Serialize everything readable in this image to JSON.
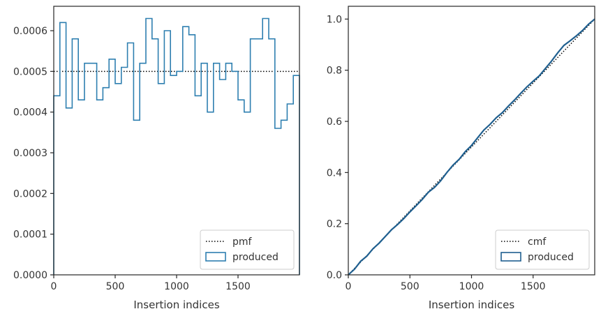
{
  "chart_data": [
    {
      "type": "histogram-step",
      "xlabel": "Insertion indices",
      "ylabel": "",
      "xlim": [
        0,
        2000
      ],
      "ylim": [
        0,
        0.00066
      ],
      "xticks": [
        0,
        500,
        1000,
        1500
      ],
      "xtick_labels": [
        "0",
        "500",
        "1000",
        "1500"
      ],
      "yticks": [
        0,
        0.0001,
        0.0002,
        0.0003,
        0.0004,
        0.0005,
        0.0006
      ],
      "ytick_labels": [
        "0.0000",
        "0.0001",
        "0.0002",
        "0.0003",
        "0.0004",
        "0.0005",
        "0.0006"
      ],
      "grid": false,
      "legend_position": "lower-right",
      "bin_width": 50,
      "series": [
        {
          "name": "pmf",
          "kind": "reference-line",
          "style": "dotted",
          "color": "#000000",
          "value": 0.0005
        },
        {
          "name": "produced",
          "kind": "step",
          "color": "#2e7fb0",
          "x_start": 0,
          "values": [
            0.00044,
            0.00062,
            0.00041,
            0.00058,
            0.00043,
            0.00052,
            0.00052,
            0.00043,
            0.00046,
            0.00053,
            0.00047,
            0.00051,
            0.00057,
            0.00038,
            0.00052,
            0.00063,
            0.00058,
            0.00047,
            0.0006,
            0.00049,
            0.0005,
            0.00061,
            0.00059,
            0.00044,
            0.00052,
            0.0004,
            0.00052,
            0.00048,
            0.00052,
            0.0005,
            0.00043,
            0.0004,
            0.00058,
            0.00058,
            0.00063,
            0.00058,
            0.00036,
            0.00038,
            0.00042,
            0.00049
          ]
        }
      ],
      "legend": [
        "pmf",
        "produced"
      ]
    },
    {
      "type": "line",
      "xlabel": "Insertion indices",
      "ylabel": "",
      "xlim": [
        0,
        2000
      ],
      "ylim": [
        0,
        1.05
      ],
      "xticks": [
        0,
        500,
        1000,
        1500
      ],
      "xtick_labels": [
        "0",
        "500",
        "1000",
        "1500"
      ],
      "yticks": [
        0,
        0.2,
        0.4,
        0.6,
        0.8,
        1.0
      ],
      "ytick_labels": [
        "0.0",
        "0.2",
        "0.4",
        "0.6",
        "0.8",
        "1.0"
      ],
      "grid": false,
      "legend_position": "lower-right",
      "series": [
        {
          "name": "cmf",
          "kind": "dotted-line",
          "color": "#000000",
          "x": [
            0,
            2000
          ],
          "y": [
            0,
            1.0
          ]
        },
        {
          "name": "produced",
          "kind": "line",
          "color": "#1f5f8f",
          "x": [
            0,
            50,
            100,
            150,
            200,
            250,
            300,
            350,
            400,
            450,
            500,
            550,
            600,
            650,
            700,
            750,
            800,
            850,
            900,
            950,
            1000,
            1050,
            1100,
            1150,
            1200,
            1250,
            1300,
            1350,
            1400,
            1450,
            1500,
            1550,
            1600,
            1650,
            1700,
            1750,
            1800,
            1850,
            1900,
            1950,
            2000
          ],
          "y": [
            0,
            0.022,
            0.053,
            0.073,
            0.102,
            0.124,
            0.15,
            0.176,
            0.197,
            0.22,
            0.246,
            0.27,
            0.295,
            0.323,
            0.342,
            0.368,
            0.4,
            0.429,
            0.452,
            0.482,
            0.506,
            0.536,
            0.566,
            0.588,
            0.614,
            0.634,
            0.66,
            0.684,
            0.71,
            0.735,
            0.757,
            0.778,
            0.807,
            0.836,
            0.868,
            0.897,
            0.915,
            0.934,
            0.955,
            0.98,
            1.0
          ]
        }
      ],
      "legend": [
        "cmf",
        "produced"
      ]
    }
  ]
}
